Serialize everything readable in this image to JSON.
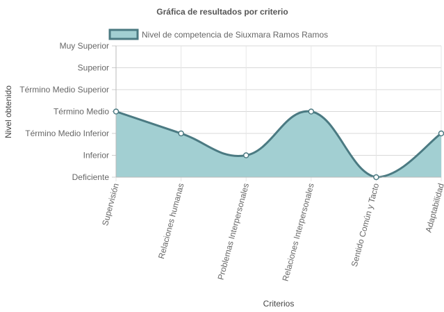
{
  "chart_data": {
    "type": "line",
    "title": "Gráfica de resultados por criterio",
    "xlabel": "Criterios",
    "ylabel": "Nivel obtenido",
    "categories": [
      "Supervisión",
      "Relaciones humanas",
      "Problemas Interpersonales",
      "Relaciones Interpersonales",
      "Sentido Común y Tacto",
      "Adaptabilidad"
    ],
    "y_levels": [
      "Deficiente",
      "Inferior",
      "Término Medio Inferior",
      "Término Medio",
      "Término Medio Superior",
      "Superior",
      "Muy Superior"
    ],
    "series": [
      {
        "name": "Nivel de competencia de Siuxmara Ramos Ramos",
        "values": [
          3,
          2,
          1,
          3,
          0,
          2
        ],
        "fill_color": "#a2cfd2",
        "line_color": "#4b7a82"
      }
    ],
    "ylim": [
      0,
      6
    ],
    "grid": true,
    "legend_position": "top",
    "fill": true,
    "smooth": true
  }
}
